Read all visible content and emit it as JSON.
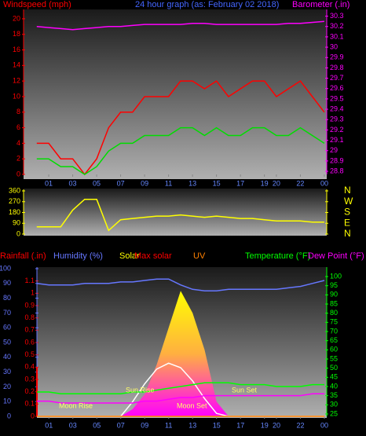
{
  "chart_data": [
    {
      "type": "line",
      "title": "24 hour graph (as: February 02 2018)",
      "y_label": "Windspeed (mph)",
      "y2_label": "Barometer (.in)",
      "xlim": [
        -1.1,
        24.2
      ],
      "xticks": [
        {
          "value": 1,
          "label": "01"
        },
        {
          "value": 3,
          "label": "03"
        },
        {
          "value": 5,
          "label": "05"
        },
        {
          "value": 7,
          "label": "07"
        },
        {
          "value": 9,
          "label": "09"
        },
        {
          "value": 11,
          "label": "11"
        },
        13,
        15,
        17,
        19,
        20,
        22,
        {
          "value": 24,
          "label": "00"
        }
      ],
      "ylim": [
        0,
        21
      ],
      "yticks": [
        0,
        2,
        4,
        6,
        8,
        10,
        12,
        14,
        16,
        18,
        20
      ],
      "y2lim": [
        28.77,
        30.35
      ],
      "y2ticks": [
        28.8,
        28.9,
        29,
        29.1,
        29.2,
        29.3,
        29.4,
        29.5,
        29.6,
        29.7,
        29.8,
        29.9,
        30,
        30.1,
        30.2,
        30.3
      ],
      "x": [
        0,
        1,
        2,
        3,
        4,
        5,
        6,
        7,
        8,
        9,
        10,
        11,
        12,
        13,
        14,
        15,
        16,
        17,
        18,
        19,
        20,
        21,
        22,
        23,
        24
      ],
      "series": [
        {
          "color": "#ff0000",
          "values": [
            4,
            4,
            2,
            2,
            0,
            2,
            6,
            8,
            8,
            10,
            10,
            10,
            12,
            12,
            11,
            12,
            10,
            11,
            12,
            12,
            10,
            11,
            12,
            10,
            8
          ]
        },
        {
          "color": "#00dd00",
          "values": [
            2,
            2,
            1,
            1,
            0,
            1,
            3,
            4,
            4,
            5,
            5,
            5,
            6,
            6,
            5,
            6,
            5,
            5,
            6,
            6,
            5,
            5,
            6,
            5,
            4
          ]
        },
        {
          "color": "#ff00ff",
          "axis": "y2",
          "values": [
            30.2,
            30.19,
            30.18,
            30.17,
            30.18,
            30.19,
            30.2,
            30.2,
            30.21,
            30.22,
            30.22,
            30.22,
            30.22,
            30.23,
            30.23,
            30.22,
            30.22,
            30.22,
            30.22,
            30.22,
            30.22,
            30.23,
            30.23,
            30.24,
            30.25
          ]
        }
      ]
    },
    {
      "type": "line",
      "xlim": [
        -1.1,
        24.2
      ],
      "ylim": [
        0,
        360
      ],
      "yticks": [
        0,
        90,
        180,
        270,
        360
      ],
      "y2lim": [
        0,
        360
      ],
      "y2ticks": [
        {
          "value": 360,
          "label": "N"
        },
        {
          "value": 270,
          "label": "W"
        },
        {
          "value": 180,
          "label": "S"
        },
        {
          "value": 90,
          "label": "E"
        },
        {
          "value": 0,
          "label": "N"
        }
      ],
      "x": [
        0,
        1,
        2,
        3,
        4,
        5,
        6,
        7,
        8,
        9,
        10,
        11,
        12,
        13,
        14,
        15,
        16,
        17,
        18,
        19,
        20,
        21,
        22,
        23,
        24
      ],
      "series": [
        {
          "color": "#ffff00",
          "values": [
            60,
            60,
            60,
            200,
            290,
            290,
            30,
            120,
            130,
            140,
            150,
            150,
            160,
            150,
            140,
            150,
            140,
            130,
            130,
            120,
            110,
            110,
            110,
            100,
            100
          ]
        }
      ]
    },
    {
      "type": "line",
      "xlim": [
        0,
        24.2
      ],
      "xticks": [
        {
          "value": 1,
          "label": "01"
        },
        {
          "value": 3,
          "label": "03"
        },
        {
          "value": 5,
          "label": "05"
        },
        {
          "value": 7,
          "label": "07"
        },
        {
          "value": 9,
          "label": "09"
        },
        {
          "value": 11,
          "label": "11"
        },
        13,
        15,
        17,
        19,
        20,
        22,
        {
          "value": 24,
          "label": "00"
        }
      ],
      "ylim": [
        0,
        100
      ],
      "yticks": [
        0,
        10,
        20,
        30,
        40,
        50,
        60,
        70,
        80,
        90,
        100
      ],
      "y3lim": [
        0,
        1.2
      ],
      "y3ticks": [
        0,
        0.1,
        0.2,
        0.3,
        0.4,
        0.5,
        0.6,
        0.7,
        0.8,
        0.9,
        1,
        1.1
      ],
      "y2lim": [
        23.7,
        104.3
      ],
      "y2ticks": [
        25,
        30,
        35,
        40,
        45,
        50,
        55,
        60,
        65,
        70,
        75,
        80,
        85,
        90,
        95,
        100
      ],
      "annotations": [
        "Sun Rise",
        "Sun Set",
        "Moon Rise",
        "Moon Set"
      ],
      "x": [
        0,
        1,
        2,
        3,
        4,
        5,
        6,
        7,
        8,
        9,
        10,
        11,
        12,
        13,
        14,
        15,
        16,
        17,
        18,
        19,
        20,
        21,
        22,
        23,
        24
      ],
      "series": [
        {
          "name": "Rainfall (.in)",
          "color": "#ff0000",
          "axis": "y3",
          "values": [
            0.4,
            0,
            0,
            0,
            0,
            0,
            0,
            0,
            0,
            0,
            0,
            0,
            0,
            0,
            0,
            0,
            0,
            0,
            0,
            0,
            0,
            0,
            0,
            0,
            0
          ]
        },
        {
          "name": "Humidity (%)",
          "color": "#6677ff",
          "values": [
            90,
            89,
            89,
            89,
            90,
            90,
            90,
            91,
            91,
            92,
            93,
            93,
            89,
            86,
            85,
            85,
            86,
            86,
            86,
            86,
            86,
            87,
            88,
            90,
            92
          ]
        },
        {
          "name": "Solar",
          "color": "#ffff00",
          "values": [
            0,
            0,
            0,
            0,
            0,
            0,
            0,
            0,
            5,
            15,
            35,
            60,
            85,
            70,
            45,
            10,
            0,
            0,
            0,
            0,
            0,
            0,
            0,
            0,
            0
          ]
        },
        {
          "name": "Max solar",
          "color": "#ff0000",
          "values": [
            0,
            0,
            0,
            0,
            0,
            0,
            0,
            0,
            10,
            22,
            32,
            36,
            33,
            24,
            12,
            2,
            0,
            0,
            0,
            0,
            0,
            0,
            0,
            0,
            0
          ]
        },
        {
          "name": "UV",
          "color": "#ff8000",
          "values": [
            0,
            0,
            0,
            0,
            0,
            0,
            0,
            0,
            0,
            0,
            0,
            0,
            0,
            0,
            0,
            0,
            0,
            0,
            0,
            0,
            0,
            0,
            0,
            0,
            0
          ]
        },
        {
          "name": "Temperature (°F)",
          "color": "#00ff00",
          "axis": "y2",
          "values": [
            37,
            37,
            36,
            36,
            36,
            36,
            36,
            36,
            37,
            37,
            38,
            39,
            40,
            41,
            42,
            42,
            42,
            41,
            41,
            41,
            40,
            40,
            40,
            41,
            41
          ]
        },
        {
          "name": "Dew Point (°F)",
          "color": "#ff00ff",
          "axis": "y2",
          "values": [
            32,
            32,
            31,
            31,
            31,
            31,
            31,
            31,
            31,
            32,
            32,
            33,
            34,
            34,
            35,
            35,
            35,
            35,
            35,
            35,
            35,
            35,
            35,
            36,
            36
          ]
        }
      ]
    }
  ]
}
